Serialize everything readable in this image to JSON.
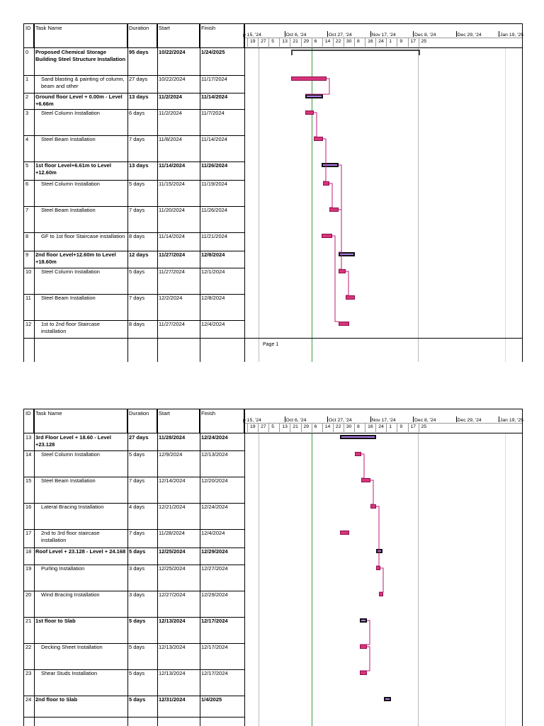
{
  "headers": {
    "id": "ID",
    "task_name": "Task Name",
    "duration": "Duration",
    "start": "Start",
    "finish": "Finish"
  },
  "timeline": {
    "months": [
      "p 15, '24",
      "Oct 6, '24",
      "Oct 27, '24",
      "Nov 17, '24",
      "Dec 8, '24",
      "Dec 29, '24",
      "Jan 19, '25"
    ],
    "days": [
      "19",
      "27",
      "5",
      "13",
      "21",
      "29",
      "6",
      "14",
      "22",
      "30",
      "8",
      "16",
      "24",
      "1",
      "9",
      "17",
      "25"
    ]
  },
  "page1": {
    "footer": "Page 1",
    "rows": [
      {
        "id": "0",
        "name": "Proposed Chemical Storage Building Steel Structure Installation",
        "duration": "95 days",
        "start": "10/22/2024",
        "finish": "1/24/2025",
        "bold": true
      },
      {
        "id": "1",
        "name": "Sand blasting & painting of column, beam and other",
        "duration": "27 days",
        "start": "10/22/2024",
        "finish": "11/17/2024",
        "bold": false
      },
      {
        "id": "2",
        "name": "Ground floor Level + 0.00m - Level +6.66m",
        "duration": "13 days",
        "start": "11/2/2024",
        "finish": "11/14/2024",
        "bold": true
      },
      {
        "id": "3",
        "name": "Steel Column Installation",
        "duration": "6 days",
        "start": "11/2/2024",
        "finish": "11/7/2024",
        "bold": false
      },
      {
        "id": "4",
        "name": "Steel Beam Installation",
        "duration": "7 days",
        "start": "11/8/2024",
        "finish": "11/14/2024",
        "bold": false
      },
      {
        "id": "5",
        "name": "1st floor Level+6.61m to Level +12.60m",
        "duration": "13 days",
        "start": "11/14/2024",
        "finish": "11/26/2024",
        "bold": true
      },
      {
        "id": "6",
        "name": "Steel Column Installation",
        "duration": "5 days",
        "start": "11/15/2024",
        "finish": "11/19/2024",
        "bold": false
      },
      {
        "id": "7",
        "name": "Steel Beam Installation",
        "duration": "7 days",
        "start": "11/20/2024",
        "finish": "11/26/2024",
        "bold": false
      },
      {
        "id": "8",
        "name": "GF to 1st floor Staircase installation",
        "duration": "8 days",
        "start": "11/14/2024",
        "finish": "11/21/2024",
        "bold": false
      },
      {
        "id": "9",
        "name": "2nd floor Level+12.60m to Level +18.60m",
        "duration": "12 days",
        "start": "11/27/2024",
        "finish": "12/8/2024",
        "bold": true
      },
      {
        "id": "10",
        "name": "Steel Column Installation",
        "duration": "5 days",
        "start": "11/27/2024",
        "finish": "12/1/2024",
        "bold": false
      },
      {
        "id": "11",
        "name": "Steel Beam Installation",
        "duration": "7 days",
        "start": "12/2/2024",
        "finish": "12/8/2024",
        "bold": false
      },
      {
        "id": "12",
        "name": "1st to 2nd floor Staircase installation",
        "duration": "8 days",
        "start": "11/27/2024",
        "finish": "12/4/2024",
        "bold": false
      }
    ]
  },
  "page2": {
    "rows": [
      {
        "id": "13",
        "name": "3rd Floor Level + 18.60 - Level +23.128",
        "duration": "27 days",
        "start": "11/28/2024",
        "finish": "12/24/2024",
        "bold": true
      },
      {
        "id": "14",
        "name": "Steel Column Installation",
        "duration": "5 days",
        "start": "12/9/2024",
        "finish": "12/13/2024",
        "bold": false
      },
      {
        "id": "15",
        "name": "Steel Beam Installation",
        "duration": "7 days",
        "start": "12/14/2024",
        "finish": "12/20/2024",
        "bold": false
      },
      {
        "id": "16",
        "name": "Lateral Bracing Installation",
        "duration": "4 days",
        "start": "12/21/2024",
        "finish": "12/24/2024",
        "bold": false
      },
      {
        "id": "17",
        "name": "2nd to 3rd floor staircase installation",
        "duration": "7 days",
        "start": "11/28/2024",
        "finish": "12/4/2024",
        "bold": false
      },
      {
        "id": "18",
        "name": "Roof Level + 23.128 - Level + 24.168",
        "duration": "5 days",
        "start": "12/25/2024",
        "finish": "12/29/2024",
        "bold": true
      },
      {
        "id": "19",
        "name": "Purling Installation",
        "duration": "3 days",
        "start": "12/25/2024",
        "finish": "12/27/2024",
        "bold": false
      },
      {
        "id": "20",
        "name": "Wind Bracing Installation",
        "duration": "3 days",
        "start": "12/27/2024",
        "finish": "12/29/2024",
        "bold": false
      },
      {
        "id": "21",
        "name": "1st floor to Slab",
        "duration": "5 days",
        "start": "12/13/2024",
        "finish": "12/17/2024",
        "bold": true
      },
      {
        "id": "22",
        "name": "Decking Sheet Installation",
        "duration": "5 days",
        "start": "12/13/2024",
        "finish": "12/17/2024",
        "bold": false
      },
      {
        "id": "23",
        "name": "Shear Studs Installation",
        "duration": "5 days",
        "start": "12/13/2024",
        "finish": "12/17/2024",
        "bold": false
      },
      {
        "id": "24",
        "name": "2nd floor to Slab",
        "duration": "5 days",
        "start": "12/31/2024",
        "finish": "1/4/2025",
        "bold": true
      }
    ]
  },
  "colors": {
    "task": "#d8347c",
    "summary": "#b07ce8",
    "today": "#3c9a3c",
    "link": "#c01a78"
  }
}
